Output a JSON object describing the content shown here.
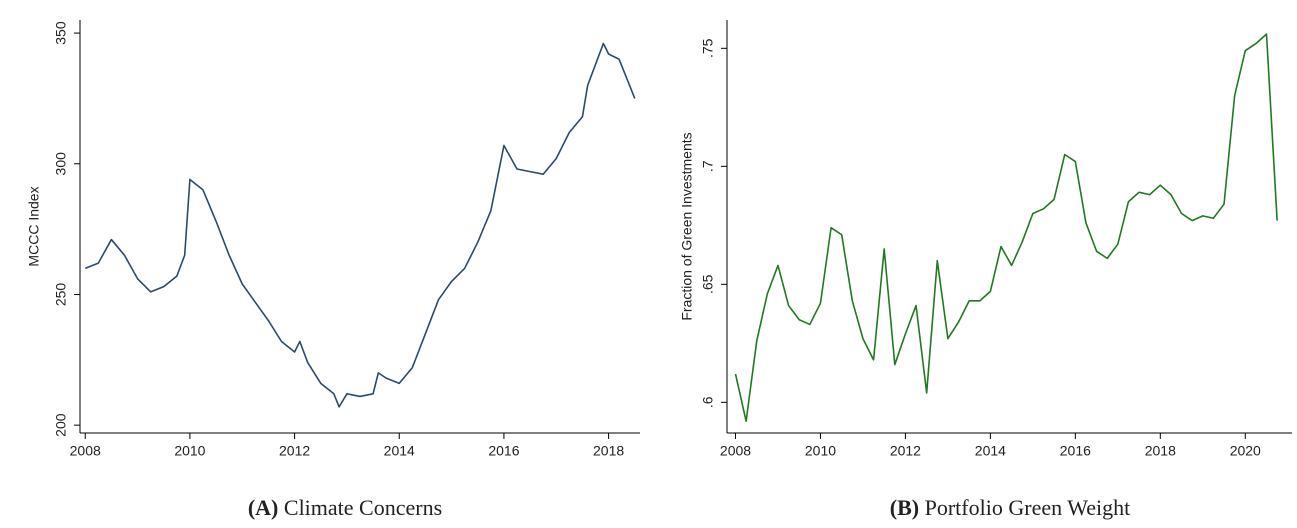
{
  "chart_data": [
    {
      "type": "line",
      "label": "(A)",
      "caption": "Climate Concerns",
      "y_label": "MCCC Index",
      "color": "#2a4a6e",
      "x": [
        2008.0,
        2008.25,
        2008.5,
        2008.75,
        2009.0,
        2009.25,
        2009.5,
        2009.75,
        2009.9,
        2010.0,
        2010.25,
        2010.5,
        2010.75,
        2011.0,
        2011.25,
        2011.5,
        2011.75,
        2012.0,
        2012.1,
        2012.25,
        2012.5,
        2012.75,
        2012.85,
        2013.0,
        2013.25,
        2013.5,
        2013.6,
        2013.75,
        2014.0,
        2014.25,
        2014.5,
        2014.75,
        2015.0,
        2015.25,
        2015.5,
        2015.75,
        2016.0,
        2016.25,
        2016.5,
        2016.75,
        2017.0,
        2017.25,
        2017.5,
        2017.6,
        2017.75,
        2017.9,
        2018.0,
        2018.2,
        2018.4,
        2018.5
      ],
      "values": [
        260,
        262,
        271,
        265,
        256,
        251,
        253,
        257,
        265,
        294,
        290,
        278,
        265,
        254,
        247,
        240,
        232,
        228,
        232,
        224,
        216,
        212,
        207,
        212,
        211,
        212,
        220,
        218,
        216,
        222,
        235,
        248,
        255,
        260,
        270,
        282,
        307,
        298,
        297,
        296,
        302,
        312,
        318,
        330,
        338,
        346,
        342,
        340,
        330,
        325
      ],
      "xlim": [
        2007.9,
        2018.6
      ],
      "xticks": [
        2008,
        2010,
        2012,
        2014,
        2016,
        2018
      ],
      "ylim": [
        197,
        355
      ],
      "yticks": [
        200,
        250,
        300,
        350
      ]
    },
    {
      "type": "line",
      "label": "(B)",
      "caption": "Portfolio Green Weight",
      "y_label": "Fraction of Green Investments",
      "color": "#1f7a1f",
      "x": [
        2008.0,
        2008.25,
        2008.5,
        2008.75,
        2009.0,
        2009.25,
        2009.5,
        2009.75,
        2010.0,
        2010.25,
        2010.5,
        2010.75,
        2011.0,
        2011.25,
        2011.5,
        2011.75,
        2012.0,
        2012.25,
        2012.5,
        2012.75,
        2013.0,
        2013.25,
        2013.5,
        2013.75,
        2014.0,
        2014.25,
        2014.5,
        2014.75,
        2015.0,
        2015.25,
        2015.5,
        2015.75,
        2016.0,
        2016.25,
        2016.5,
        2016.75,
        2017.0,
        2017.25,
        2017.5,
        2017.75,
        2018.0,
        2018.25,
        2018.5,
        2018.75,
        2019.0,
        2019.25,
        2019.5,
        2019.75,
        2020.0,
        2020.25,
        2020.5,
        2020.75
      ],
      "values": [
        0.612,
        0.592,
        0.626,
        0.646,
        0.658,
        0.641,
        0.635,
        0.633,
        0.642,
        0.674,
        0.671,
        0.643,
        0.627,
        0.618,
        0.665,
        0.616,
        0.629,
        0.641,
        0.604,
        0.66,
        0.627,
        0.634,
        0.643,
        0.643,
        0.647,
        0.666,
        0.658,
        0.668,
        0.68,
        0.682,
        0.686,
        0.705,
        0.702,
        0.676,
        0.664,
        0.661,
        0.667,
        0.685,
        0.689,
        0.688,
        0.692,
        0.688,
        0.68,
        0.677,
        0.679,
        0.678,
        0.684,
        0.73,
        0.749,
        0.752,
        0.756,
        0.677
      ],
      "xlim": [
        2007.8,
        2021.1
      ],
      "xticks": [
        2008,
        2010,
        2012,
        2014,
        2016,
        2018,
        2020
      ],
      "ylim": [
        0.587,
        0.762
      ],
      "yticks": [
        {
          "value": 0.6,
          "label": ".6"
        },
        {
          "value": 0.65,
          "label": ".65"
        },
        {
          "value": 0.7,
          "label": ".7"
        },
        {
          "value": 0.75,
          "label": ".75"
        }
      ]
    }
  ]
}
